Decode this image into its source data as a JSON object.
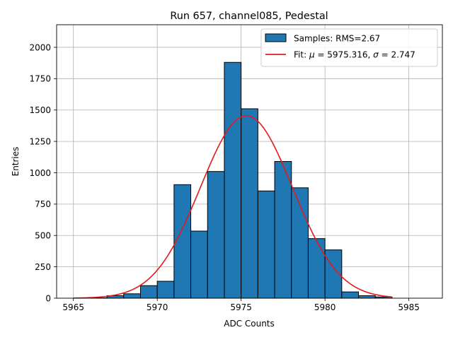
{
  "chart_data": {
    "type": "bar",
    "title": "Run 657, channel085, Pedestal",
    "xlabel": "ADC Counts",
    "ylabel": "Entries",
    "xlim": [
      5964.0,
      5987.0
    ],
    "ylim": [
      0,
      2180
    ],
    "xticks": [
      5965,
      5970,
      5975,
      5980,
      5985
    ],
    "yticks": [
      0,
      250,
      500,
      750,
      1000,
      1250,
      1500,
      1750,
      2000
    ],
    "grid": true,
    "bin_edges": [
      5966.0,
      5967.0,
      5968.0,
      5969.0,
      5970.0,
      5971.0,
      5972.0,
      5973.0,
      5974.0,
      5975.0,
      5976.0,
      5977.0,
      5978.0,
      5979.0,
      5980.0,
      5981.0,
      5982.0,
      5983.0,
      5984.0
    ],
    "values": [
      3,
      20,
      35,
      100,
      135,
      905,
      535,
      1010,
      1880,
      1510,
      855,
      1090,
      880,
      475,
      385,
      50,
      20,
      10
    ],
    "fit": {
      "mu": 5975.316,
      "sigma": 2.747,
      "x_range": [
        5965.0,
        5984.0
      ],
      "peak": 1455
    },
    "legend": {
      "position": "top-right",
      "entries": [
        {
          "label": "Samples: RMS=2.67"
        },
        {
          "label_prefix": "Fit: ",
          "mu_symbol": "μ",
          "mu_text": " = 5975.316, ",
          "sigma_symbol": "σ",
          "sigma_text": " = 2.747"
        }
      ]
    },
    "colors": {
      "bar": "#1f77b4",
      "bar_edge": "#000000",
      "fit": "#e31a1c",
      "grid": "#b0b0b0"
    }
  }
}
